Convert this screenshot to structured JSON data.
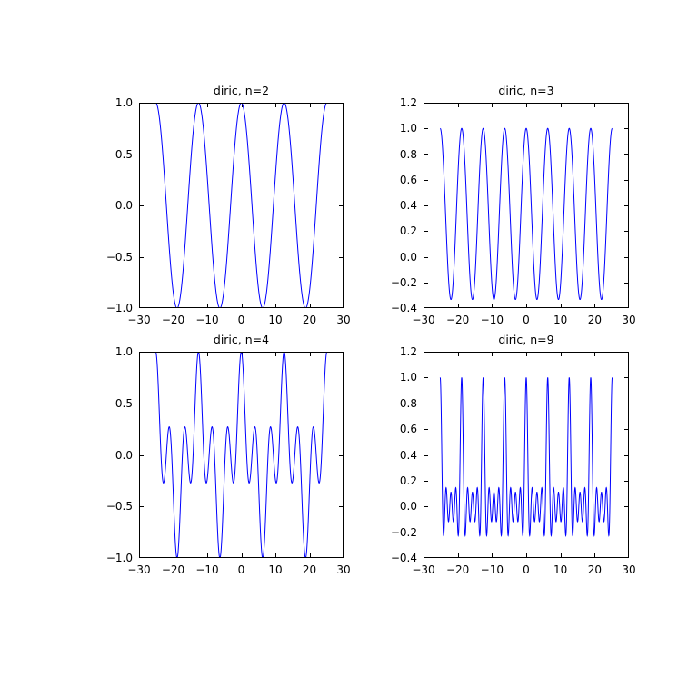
{
  "figure": {
    "background": "#ffffff",
    "frame_color": "#000000",
    "tick_color": "#000000",
    "text_color": "#000000"
  },
  "chart_data": [
    {
      "type": "line",
      "title": "diric, n=2",
      "xlabel": "",
      "ylabel": "",
      "grid": false,
      "legend": null,
      "xlim": [
        -30,
        30
      ],
      "ylim": [
        -1.0,
        1.0
      ],
      "xticks": [
        -30,
        -20,
        -10,
        0,
        10,
        20,
        30
      ],
      "xtick_labels": [
        "−30",
        "−20",
        "−10",
        "0",
        "10",
        "20",
        "30"
      ],
      "yticks": [
        -1.0,
        -0.5,
        0.0,
        0.5,
        1.0
      ],
      "ytick_labels": [
        "−1.0",
        "−0.5",
        "0.0",
        "0.5",
        "1.0"
      ],
      "series": [
        {
          "name": "diric(x, n=2)",
          "function": "sin(n*x/2)/(n*sin(x/2))",
          "n": 2,
          "x_start": -25.132741228718345,
          "x_end": 25.132741228718345,
          "num_points": 1001,
          "color": "#0000ff",
          "line_width": 1
        }
      ]
    },
    {
      "type": "line",
      "title": "diric, n=3",
      "xlabel": "",
      "ylabel": "",
      "grid": false,
      "legend": null,
      "xlim": [
        -30,
        30
      ],
      "ylim": [
        -0.4,
        1.2
      ],
      "xticks": [
        -30,
        -20,
        -10,
        0,
        10,
        20,
        30
      ],
      "xtick_labels": [
        "−30",
        "−20",
        "−10",
        "0",
        "10",
        "20",
        "30"
      ],
      "yticks": [
        -0.4,
        -0.2,
        0.0,
        0.2,
        0.4,
        0.6,
        0.8,
        1.0,
        1.2
      ],
      "ytick_labels": [
        "−0.4",
        "−0.2",
        "0.0",
        "0.2",
        "0.4",
        "0.6",
        "0.8",
        "1.0",
        "1.2"
      ],
      "series": [
        {
          "name": "diric(x, n=3)",
          "function": "sin(n*x/2)/(n*sin(x/2))",
          "n": 3,
          "x_start": -25.132741228718345,
          "x_end": 25.132741228718345,
          "num_points": 1001,
          "color": "#0000ff",
          "line_width": 1
        }
      ]
    },
    {
      "type": "line",
      "title": "diric, n=4",
      "xlabel": "",
      "ylabel": "",
      "grid": false,
      "legend": null,
      "xlim": [
        -30,
        30
      ],
      "ylim": [
        -1.0,
        1.0
      ],
      "xticks": [
        -30,
        -20,
        -10,
        0,
        10,
        20,
        30
      ],
      "xtick_labels": [
        "−30",
        "−20",
        "−10",
        "0",
        "10",
        "20",
        "30"
      ],
      "yticks": [
        -1.0,
        -0.5,
        0.0,
        0.5,
        1.0
      ],
      "ytick_labels": [
        "−1.0",
        "−0.5",
        "0.0",
        "0.5",
        "1.0"
      ],
      "series": [
        {
          "name": "diric(x, n=4)",
          "function": "sin(n*x/2)/(n*sin(x/2))",
          "n": 4,
          "x_start": -25.132741228718345,
          "x_end": 25.132741228718345,
          "num_points": 1001,
          "color": "#0000ff",
          "line_width": 1
        }
      ]
    },
    {
      "type": "line",
      "title": "diric, n=9",
      "xlabel": "",
      "ylabel": "",
      "grid": false,
      "legend": null,
      "xlim": [
        -30,
        30
      ],
      "ylim": [
        -0.4,
        1.2
      ],
      "xticks": [
        -30,
        -20,
        -10,
        0,
        10,
        20,
        30
      ],
      "xtick_labels": [
        "−30",
        "−20",
        "−10",
        "0",
        "10",
        "20",
        "30"
      ],
      "yticks": [
        -0.4,
        -0.2,
        0.0,
        0.2,
        0.4,
        0.6,
        0.8,
        1.0,
        1.2
      ],
      "ytick_labels": [
        "−0.4",
        "−0.2",
        "0.0",
        "0.2",
        "0.4",
        "0.6",
        "0.8",
        "1.0",
        "1.2"
      ],
      "series": [
        {
          "name": "diric(x, n=9)",
          "function": "sin(n*x/2)/(n*sin(x/2))",
          "n": 9,
          "x_start": -25.132741228718345,
          "x_end": 25.132741228718345,
          "num_points": 1401,
          "color": "#0000ff",
          "line_width": 1
        }
      ]
    }
  ]
}
